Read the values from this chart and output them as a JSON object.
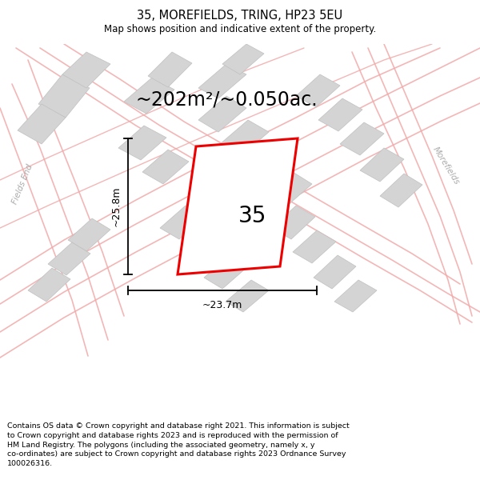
{
  "title": "35, MOREFIELDS, TRING, HP23 5EU",
  "subtitle": "Map shows position and indicative extent of the property.",
  "area_text": "~202m²/~0.050ac.",
  "label_35": "35",
  "dim_width": "~23.7m",
  "dim_height": "~25.8m",
  "footer": "Contains OS data © Crown copyright and database right 2021. This information is subject to Crown copyright and database rights 2023 and is reproduced with the permission of HM Land Registry. The polygons (including the associated geometry, namely x, y co-ordinates) are subject to Crown copyright and database rights 2023 Ordnance Survey 100026316.",
  "map_bg": "#ffffff",
  "road_color": "#f2aaaa",
  "block_fill": "#d4d4d4",
  "block_edge": "#c0c0c0",
  "plot_edge": "#ee0000",
  "plot_fill": "#ffffff",
  "title_fontsize": 10.5,
  "subtitle_fontsize": 8.5,
  "area_fontsize": 17,
  "label_fontsize": 20,
  "dim_fontsize": 9,
  "footer_fontsize": 6.8,
  "fields_end_text": "Fields End",
  "morefields_text": "Morefields",
  "street_label_color": "#aaaaaa",
  "street_label_size": 7.5
}
